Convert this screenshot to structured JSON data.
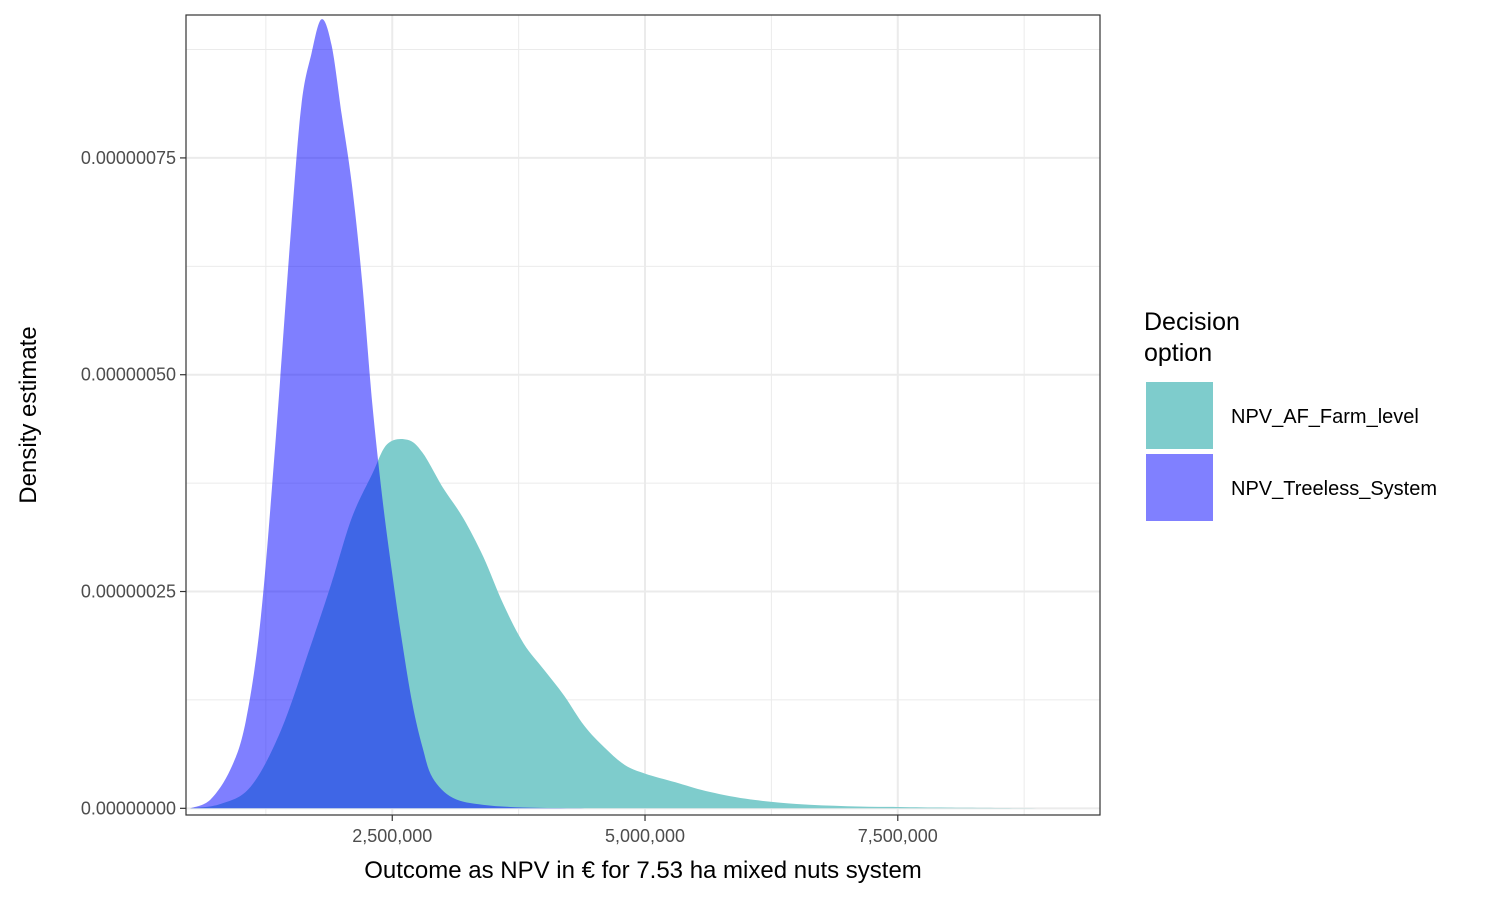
{
  "chart_data": {
    "type": "area",
    "subtype": "density",
    "title": "",
    "xlabel": "Outcome as NPV in € for 7.53 ha mixed nuts system",
    "ylabel": "Density estimate",
    "xlim": [
      460000,
      9500000
    ],
    "ylim": [
      -7.7e-09,
      9.148e-07
    ],
    "x_ticks": [
      {
        "value": 2500000,
        "label": "2,500,000"
      },
      {
        "value": 5000000,
        "label": "5,000,000"
      },
      {
        "value": 7500000,
        "label": "7,500,000"
      }
    ],
    "y_ticks": [
      {
        "value": 0,
        "label": "0.00000000"
      },
      {
        "value": 2.5e-07,
        "label": "0.00000025"
      },
      {
        "value": 5e-07,
        "label": "0.00000050"
      },
      {
        "value": 7.5e-07,
        "label": "0.00000075"
      }
    ],
    "grid": true,
    "legend": {
      "title_lines": [
        "Decision",
        "option"
      ],
      "position": "right"
    },
    "series": [
      {
        "name": "NPV_AF_Farm_level",
        "color": "#7ECCCC",
        "x": [
          500000,
          800000,
          1100000,
          1400000,
          1700000,
          1900000,
          2100000,
          2300000,
          2450000,
          2650000,
          2800000,
          3000000,
          3200000,
          3400000,
          3600000,
          3800000,
          4000000,
          4200000,
          4400000,
          4600000,
          4800000,
          5000000,
          5300000,
          5600000,
          6000000,
          6500000,
          7000000,
          7500000,
          8000000,
          8700000,
          9300000
        ],
        "y": [
          0,
          5e-09,
          2.5e-08,
          9e-08,
          1.9e-07,
          2.6e-07,
          3.35e-07,
          3.85e-07,
          4.2e-07,
          4.25e-07,
          4.1e-07,
          3.7e-07,
          3.35e-07,
          2.9e-07,
          2.35e-07,
          1.9e-07,
          1.6e-07,
          1.3e-07,
          9.5e-08,
          7e-08,
          5e-08,
          4e-08,
          3e-08,
          2e-08,
          1.1e-08,
          5e-09,
          2.5e-09,
          1.5e-09,
          8e-10,
          3e-10,
          0
        ]
      },
      {
        "name": "NPV_Treeless_System",
        "color": "#8080FF",
        "x": [
          500000,
          700000,
          900000,
          1050000,
          1200000,
          1350000,
          1500000,
          1600000,
          1700000,
          1800000,
          1900000,
          2000000,
          2100000,
          2200000,
          2300000,
          2400000,
          2500000,
          2600000,
          2700000,
          2800000,
          2900000,
          3100000,
          3400000,
          3800000,
          4300000,
          5000000
        ],
        "y": [
          0,
          1e-08,
          4.5e-08,
          1e-07,
          2.2e-07,
          4.3e-07,
          6.7e-07,
          8.1e-07,
          8.7e-07,
          9.1e-07,
          8.8e-07,
          8e-07,
          7.2e-07,
          6.1e-07,
          4.7e-07,
          3.6e-07,
          2.7e-07,
          1.9e-07,
          1.2e-07,
          7e-08,
          3.5e-08,
          1.2e-08,
          4e-09,
          1e-09,
          2e-10,
          0
        ]
      }
    ]
  }
}
